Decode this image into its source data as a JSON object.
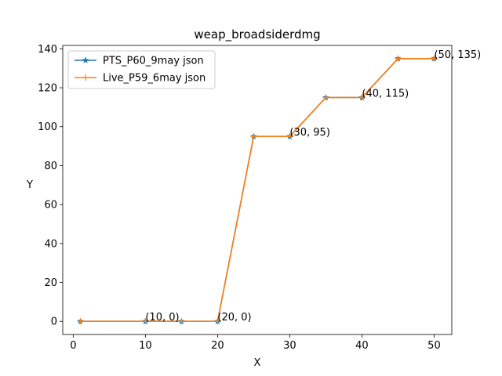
{
  "chart_data": {
    "type": "line",
    "title": "weap_broadsiderdmg",
    "xlabel": "X",
    "ylabel": "Y",
    "xlim": [
      -1.45,
      52.45
    ],
    "ylim": [
      -6.75,
      141.75
    ],
    "xticks": [
      0,
      10,
      20,
      30,
      40,
      50
    ],
    "yticks": [
      0,
      20,
      40,
      60,
      80,
      100,
      120,
      140
    ],
    "grid": false,
    "legend_position": "upper-left",
    "series": [
      {
        "name": "PTS_P60_9may json",
        "color": "#1f77b4",
        "marker": "star",
        "x": [
          1,
          10,
          15,
          20,
          25,
          30,
          35,
          40,
          45,
          50
        ],
        "y": [
          0,
          0,
          0,
          0,
          95,
          95,
          115,
          115,
          135,
          135
        ]
      },
      {
        "name": "Live_P59_6may json",
        "color": "#ff7f0e",
        "marker": "plus",
        "x": [
          1,
          10,
          15,
          20,
          25,
          30,
          35,
          40,
          45,
          50
        ],
        "y": [
          0,
          0,
          0,
          0,
          95,
          95,
          115,
          115,
          135,
          135
        ]
      }
    ],
    "annotations": [
      {
        "text": "(10, 0)",
        "x": 10,
        "y": 0
      },
      {
        "text": "(20, 0)",
        "x": 20,
        "y": 0
      },
      {
        "text": "(30, 95)",
        "x": 30,
        "y": 95
      },
      {
        "text": "(40, 115)",
        "x": 40,
        "y": 115
      },
      {
        "text": "(50, 135)",
        "x": 50,
        "y": 135
      }
    ]
  }
}
